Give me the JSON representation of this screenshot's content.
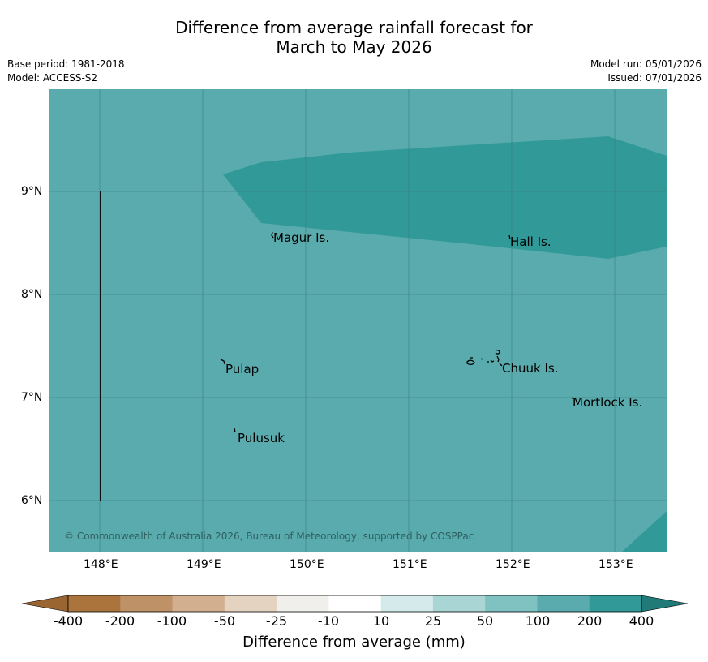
{
  "header": {
    "title_line1": "Difference from average rainfall forecast for",
    "title_line2": "March to May 2026",
    "base_period": "Base period: 1981-2018",
    "model": "Model: ACCESS-S2",
    "model_run": "Model run: 05/01/2026",
    "issued": "Issued: 07/01/2026"
  },
  "map": {
    "places": {
      "magur": "Magur Is.",
      "hall": "Hall Is.",
      "pulap": "Pulap",
      "chuuk": "Chuuk Is.",
      "mortlock": "Mortlock Is.",
      "pulusuk": "Pulusuk"
    },
    "lat_ticks": [
      "9°N",
      "8°N",
      "7°N",
      "6°N"
    ],
    "lon_ticks": [
      "148°E",
      "149°E",
      "150°E",
      "151°E",
      "152°E",
      "153°E"
    ],
    "copyright": "© Commonwealth of Australia 2026, Bureau of Meteorology, supported by COSPPac",
    "colors": {
      "background_class": "#5aabad",
      "high_class": "#319a98",
      "grid": "#3a7a7b"
    }
  },
  "colorbar": {
    "labels": [
      "-400",
      "-200",
      "-100",
      "-50",
      "-25",
      "-10",
      "10",
      "25",
      "50",
      "100",
      "200",
      "400"
    ],
    "colors": [
      "#aa743c",
      "#bf9166",
      "#d2b08f",
      "#e5d3c2",
      "#f1efeb",
      "#ffffff",
      "#d5ebeb",
      "#aad5d5",
      "#80c1c2",
      "#5aabad",
      "#319a98",
      "#1f7a78"
    ],
    "title": "Difference from average (mm)"
  }
}
